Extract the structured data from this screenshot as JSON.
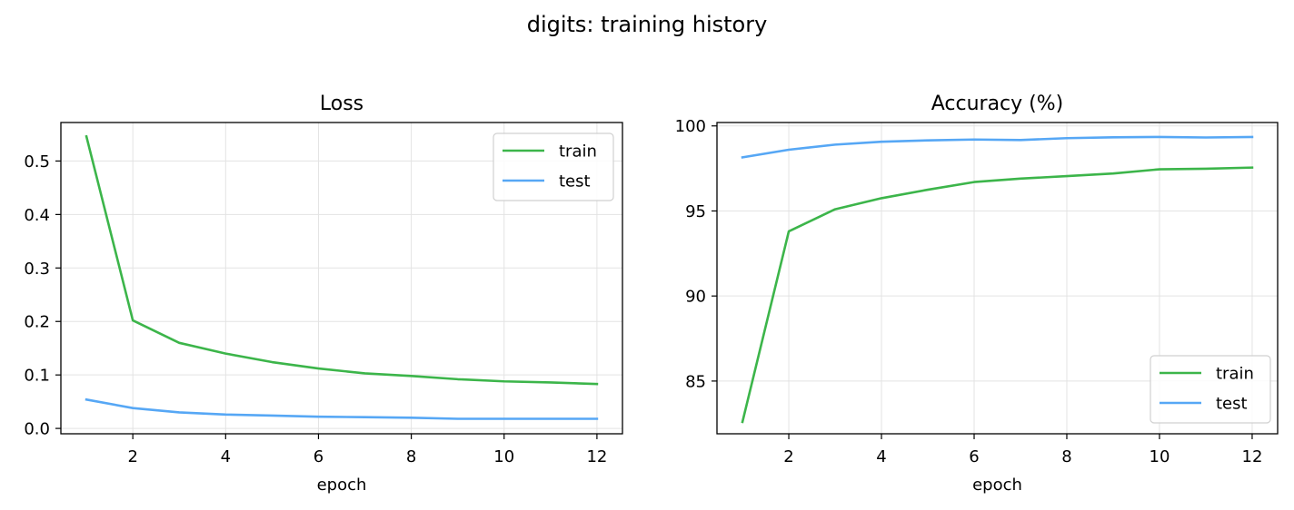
{
  "figure_title": "digits: training history",
  "colors": {
    "train": "#3cb54a",
    "test": "#56a7f5",
    "grid": "#e3e3e3",
    "axis": "#000000"
  },
  "chart_data": [
    {
      "type": "line",
      "title": "Loss",
      "xlabel": "epoch",
      "ylabel": "",
      "x": [
        1,
        2,
        3,
        4,
        5,
        6,
        7,
        8,
        9,
        10,
        11,
        12
      ],
      "xlim": [
        0.45,
        12.55
      ],
      "ylim": [
        -0.01,
        0.572
      ],
      "xticks": [
        2,
        4,
        6,
        8,
        10,
        12
      ],
      "yticks": [
        0.0,
        0.1,
        0.2,
        0.3,
        0.4,
        0.5
      ],
      "ytick_labels": [
        "0.0",
        "0.1",
        "0.2",
        "0.3",
        "0.4",
        "0.5"
      ],
      "grid": true,
      "legend_position": "top-right",
      "series": [
        {
          "name": "train",
          "color": "#3cb54a",
          "values": [
            0.546,
            0.202,
            0.16,
            0.14,
            0.124,
            0.112,
            0.103,
            0.098,
            0.092,
            0.088,
            0.086,
            0.083
          ]
        },
        {
          "name": "test",
          "color": "#56a7f5",
          "values": [
            0.054,
            0.038,
            0.03,
            0.026,
            0.024,
            0.022,
            0.021,
            0.02,
            0.018,
            0.018,
            0.018,
            0.018
          ]
        }
      ]
    },
    {
      "type": "line",
      "title": "Accuracy (%)",
      "xlabel": "epoch",
      "ylabel": "",
      "x": [
        1,
        2,
        3,
        4,
        5,
        6,
        7,
        8,
        9,
        10,
        11,
        12
      ],
      "xlim": [
        0.45,
        12.55
      ],
      "ylim": [
        81.9,
        100.2
      ],
      "xticks": [
        2,
        4,
        6,
        8,
        10,
        12
      ],
      "yticks": [
        85,
        90,
        95,
        100
      ],
      "ytick_labels": [
        "85",
        "90",
        "95",
        "100"
      ],
      "grid": true,
      "legend_position": "bottom-right",
      "series": [
        {
          "name": "train",
          "color": "#3cb54a",
          "values": [
            82.6,
            93.8,
            95.1,
            95.75,
            96.25,
            96.7,
            96.9,
            97.05,
            97.2,
            97.45,
            97.48,
            97.55
          ]
        },
        {
          "name": "test",
          "color": "#56a7f5",
          "values": [
            98.15,
            98.6,
            98.9,
            99.07,
            99.15,
            99.2,
            99.17,
            99.28,
            99.33,
            99.35,
            99.32,
            99.35
          ]
        }
      ]
    }
  ]
}
